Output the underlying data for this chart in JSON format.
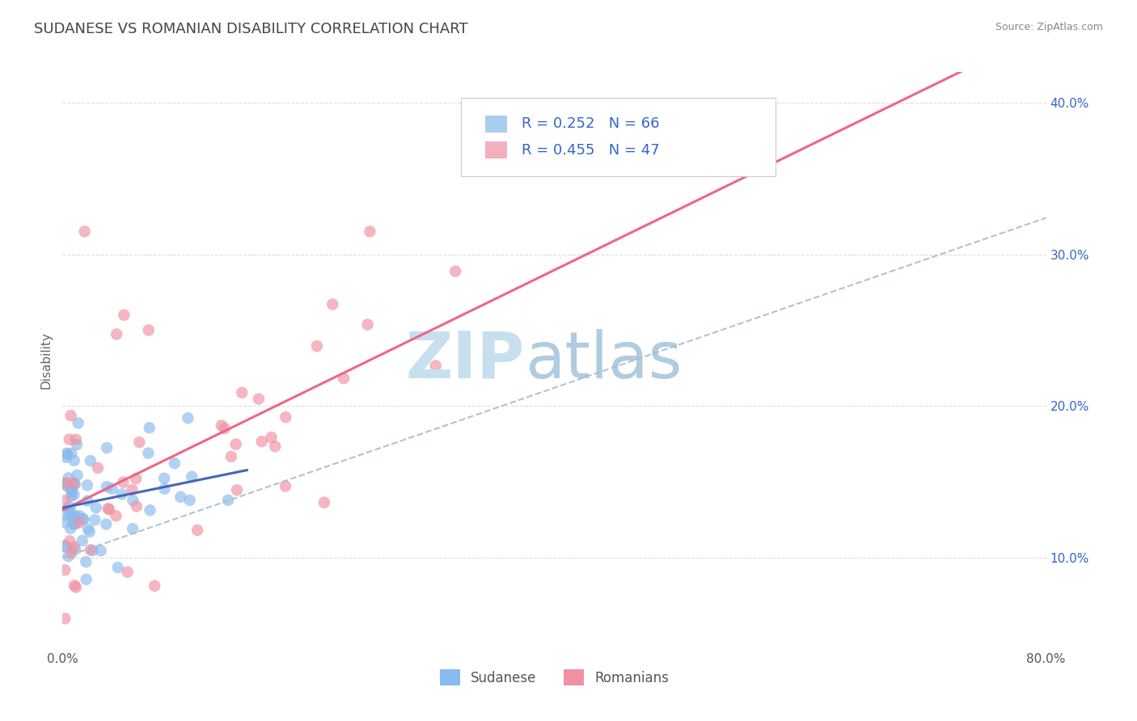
{
  "title": "SUDANESE VS ROMANIAN DISABILITY CORRELATION CHART",
  "source": "Source: ZipAtlas.com",
  "ylabel": "Disability",
  "xlim": [
    0.0,
    0.8
  ],
  "ylim": [
    0.04,
    0.42
  ],
  "xtick_positions": [
    0.0,
    0.8
  ],
  "xtick_labels": [
    "0.0%",
    "80.0%"
  ],
  "ytick_positions": [
    0.1,
    0.2,
    0.3,
    0.4
  ],
  "ytick_labels": [
    "10.0%",
    "20.0%",
    "30.0%",
    "40.0%"
  ],
  "background_color": "#ffffff",
  "grid_color": "#dddddd",
  "legend": {
    "sudanese_R": 0.252,
    "sudanese_N": 66,
    "romanian_R": 0.455,
    "romanian_N": 47,
    "sudanese_color": "#aaccee",
    "romanian_color": "#f0b0c0",
    "label_color": "#3366cc"
  },
  "sudanese_scatter_color": "#88bbee",
  "romanian_scatter_color": "#f090a0",
  "trend_sudanese_color": "#4466bb",
  "trend_romanian_color": "#ee6688",
  "dashed_color": "#aabbcc",
  "title_color": "#444444",
  "title_fontsize": 13,
  "watermark_zip_color": "#c8dff0",
  "watermark_atlas_color": "#b0cce0"
}
